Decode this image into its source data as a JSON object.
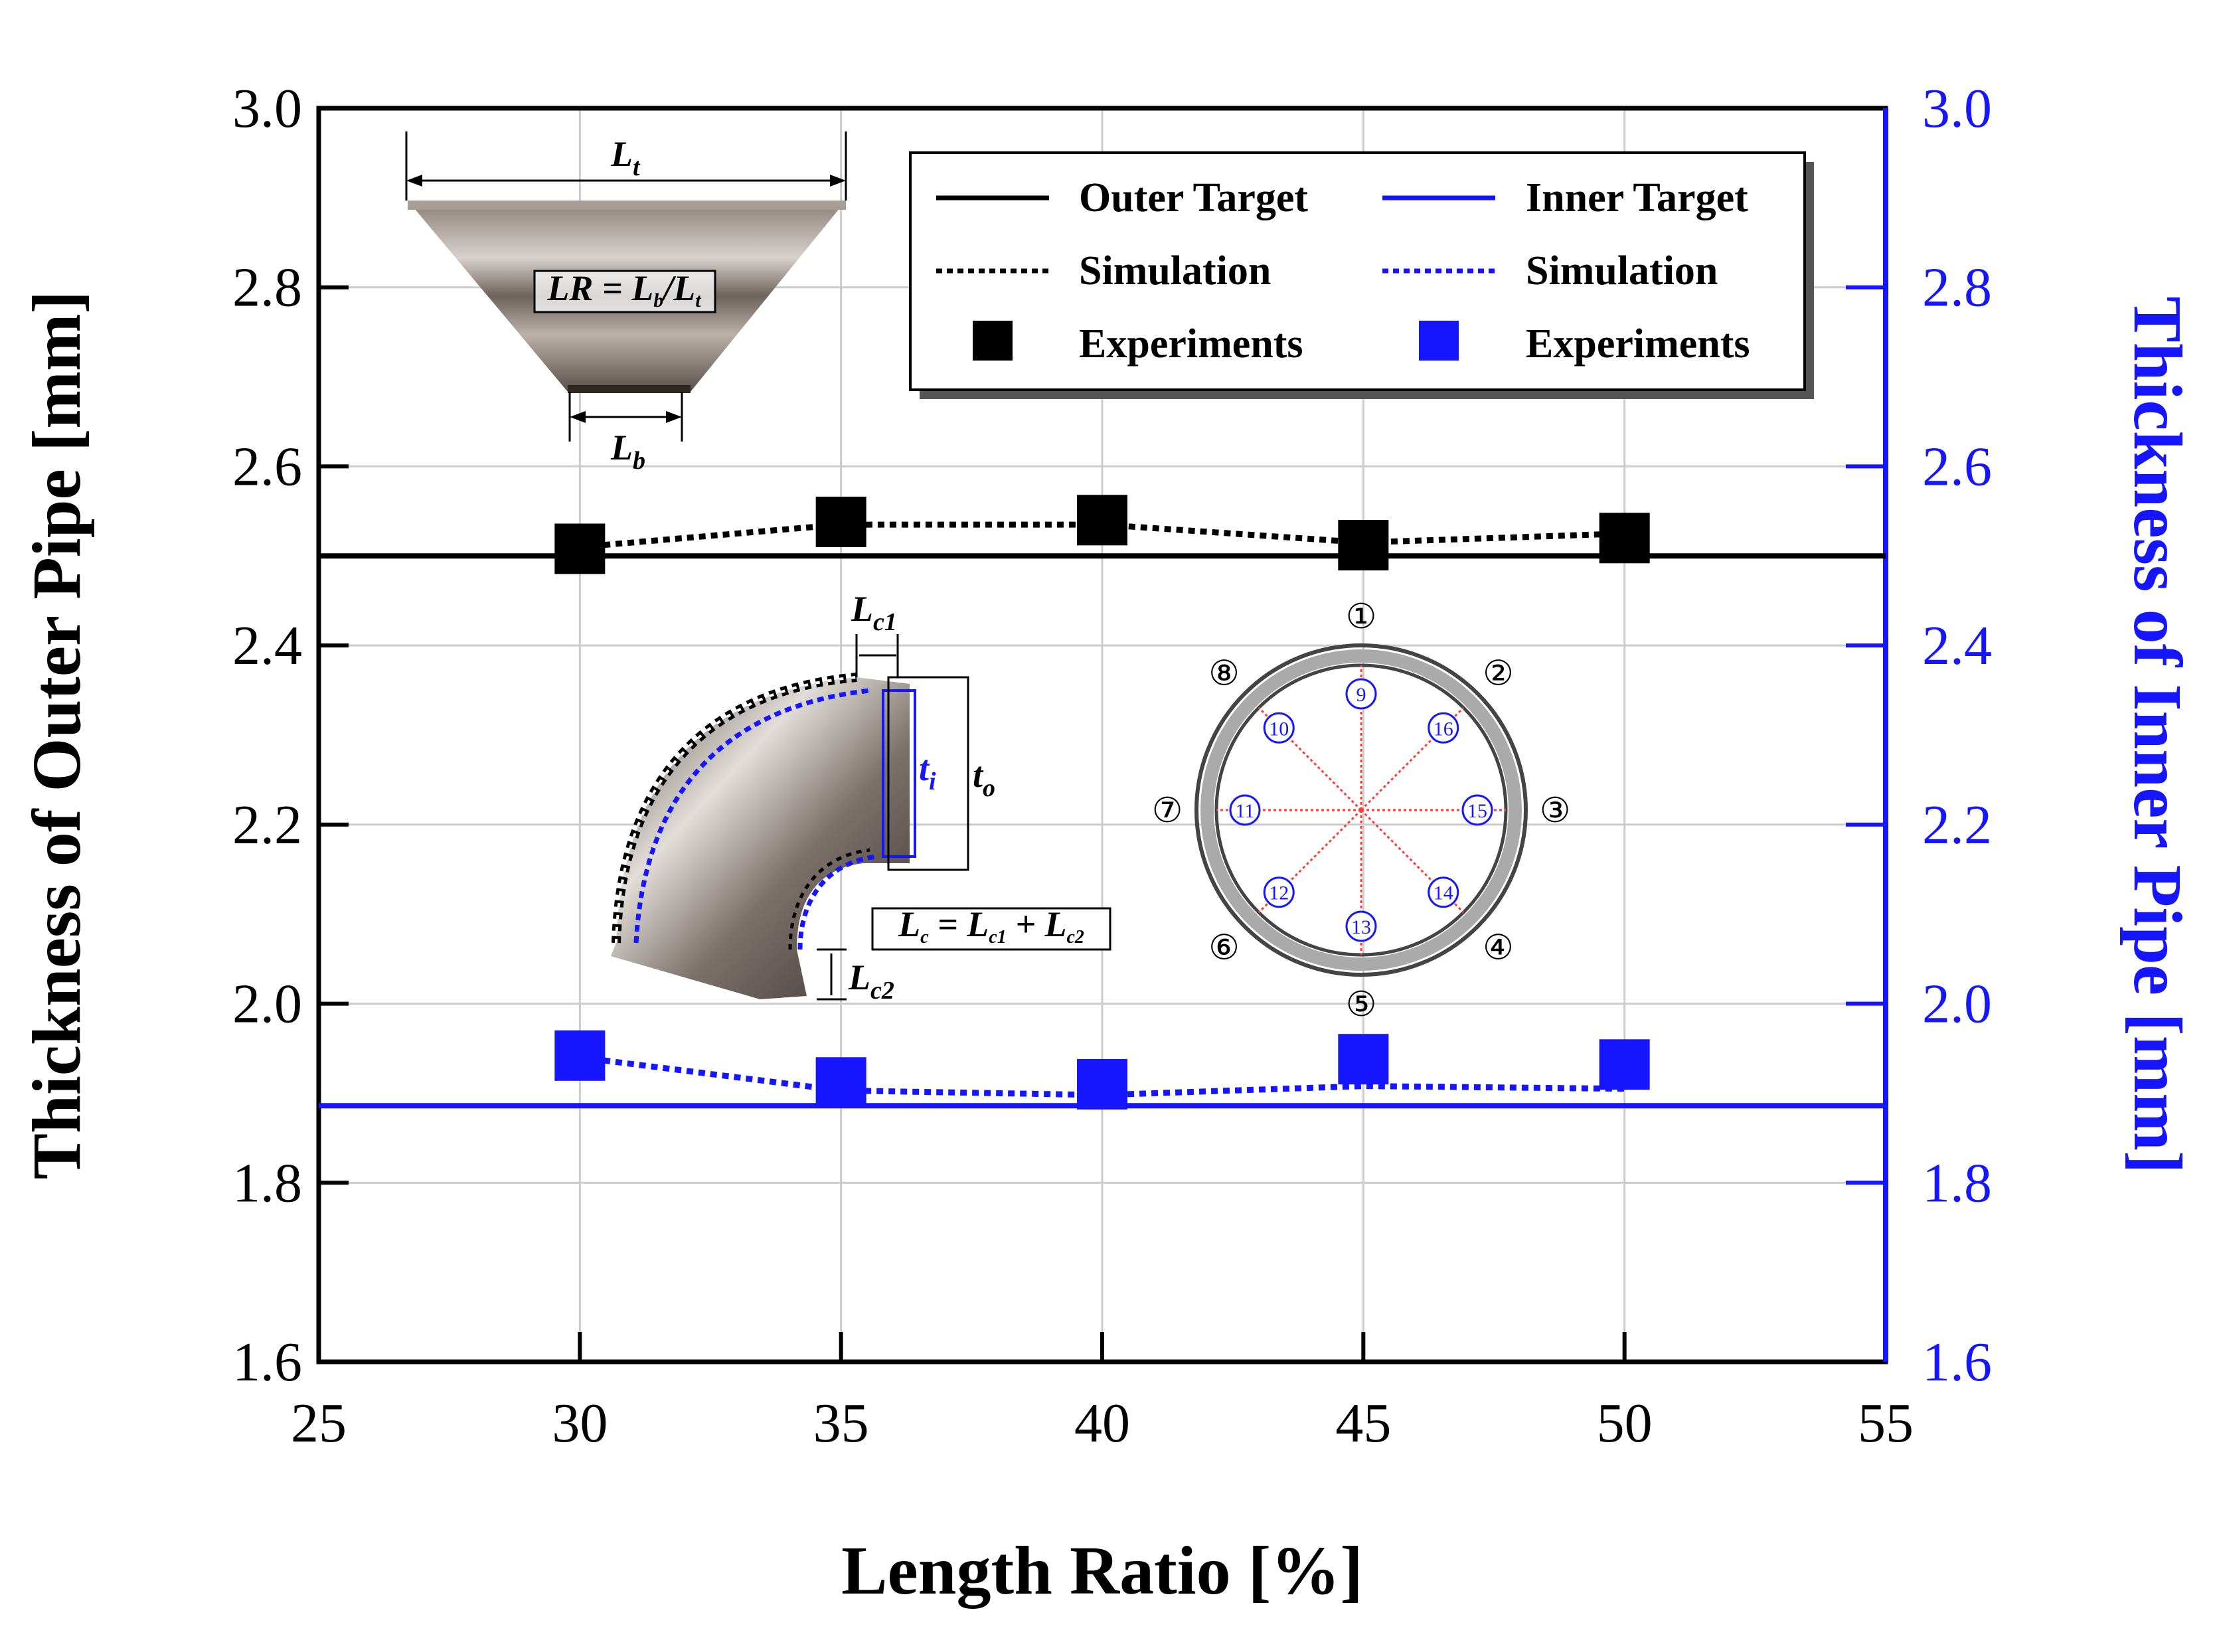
{
  "chart_data": {
    "type": "line",
    "xlabel": "Length Ratio [%]",
    "ylabel_left": "Thickness of Outer Pipe [mm]",
    "ylabel_right": "Thickness of Inner Pipe [mm]",
    "xlim": [
      25,
      55
    ],
    "ylim_left": [
      1.6,
      3.0
    ],
    "ylim_right": [
      1.6,
      3.0
    ],
    "xticks": [
      "25",
      "30",
      "35",
      "40",
      "45",
      "50",
      "55"
    ],
    "yticks_left": [
      "1.6",
      "1.8",
      "2.0",
      "2.2",
      "2.4",
      "2.6",
      "2.8",
      "3.0"
    ],
    "yticks_right": [
      "1.6",
      "1.8",
      "2.0",
      "2.2",
      "2.4",
      "2.6",
      "2.8",
      "3.0"
    ],
    "grid": true,
    "targets": [
      {
        "name": "Outer Target",
        "value": 2.5,
        "color": "#000000"
      },
      {
        "name": "Inner Target",
        "value": 1.886,
        "color": "#1515ff"
      }
    ],
    "series": [
      {
        "name": "Simulation",
        "group": "outer",
        "style": "dotted",
        "color": "#000000",
        "x": [
          30,
          35,
          40,
          45,
          50
        ],
        "values": [
          2.51,
          2.535,
          2.535,
          2.515,
          2.525
        ]
      },
      {
        "name": "Experiments",
        "group": "outer",
        "style": "square",
        "color": "#000000",
        "x": [
          30,
          35,
          40,
          45,
          50
        ],
        "values": [
          2.508,
          2.538,
          2.54,
          2.512,
          2.52
        ]
      },
      {
        "name": "Simulation",
        "group": "inner",
        "style": "dotted",
        "color": "#1515ff",
        "x": [
          30,
          35,
          40,
          45,
          50
        ],
        "values": [
          1.94,
          1.903,
          1.898,
          1.908,
          1.905
        ]
      },
      {
        "name": "Experiments",
        "group": "inner",
        "style": "square",
        "color": "#1515ff",
        "x": [
          30,
          35,
          40,
          45,
          50
        ],
        "values": [
          1.942,
          1.912,
          1.91,
          1.938,
          1.932
        ]
      }
    ],
    "legend": {
      "position": "top-right",
      "items": [
        "Outer Target",
        "Inner Target",
        "Simulation",
        "Simulation",
        "Experiments",
        "Experiments"
      ]
    },
    "annotations": {
      "inset_top": {
        "lt": "L",
        "lt_sub": "t",
        "lr_text": "LR = L",
        "lr_sub1": "b",
        "lr_mid": "/L",
        "lr_sub2": "t",
        "lb": "L",
        "lb_sub": "b"
      },
      "inset_elbow": {
        "lc1": "L",
        "lc1_sub": "c1",
        "ti": "t",
        "ti_sub": "i",
        "to": "t",
        "to_sub": "o",
        "lc_eq": "L",
        "lc_eq_sub": "c",
        "lc_eq_mid1": " = L",
        "lc_eq_sub1": "c1",
        "lc_eq_mid2": " + L",
        "lc_eq_sub2": "c2",
        "lc2": "L",
        "lc2_sub": "c2"
      },
      "inset_circle": {
        "outer_points": [
          "①",
          "②",
          "③",
          "④",
          "⑤",
          "⑥",
          "⑦",
          "⑧"
        ],
        "inner_points": [
          "9",
          "10",
          "11",
          "12",
          "13",
          "14",
          "15",
          "16"
        ]
      }
    }
  },
  "colors": {
    "inner": "#1515ff",
    "outer": "#000000",
    "grid": "#cccccc"
  }
}
